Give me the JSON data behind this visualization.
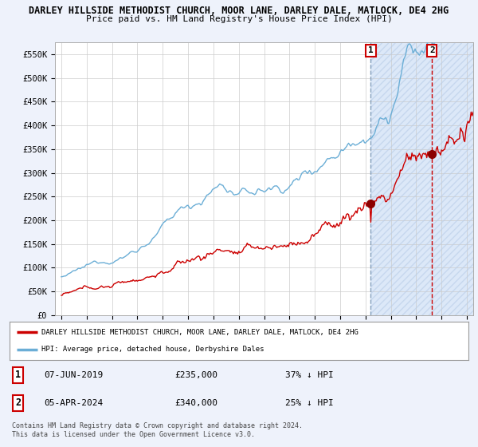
{
  "title": "DARLEY HILLSIDE METHODIST CHURCH, MOOR LANE, DARLEY DALE, MATLOCK, DE4 2HG",
  "subtitle": "Price paid vs. HM Land Registry's House Price Index (HPI)",
  "ylim": [
    0,
    575000
  ],
  "yticks": [
    0,
    50000,
    100000,
    150000,
    200000,
    250000,
    300000,
    350000,
    400000,
    450000,
    500000,
    550000
  ],
  "ytick_labels": [
    "£0",
    "£50K",
    "£100K",
    "£150K",
    "£200K",
    "£250K",
    "£300K",
    "£350K",
    "£400K",
    "£450K",
    "£500K",
    "£550K"
  ],
  "hpi_color": "#6baed6",
  "price_color": "#cc0000",
  "sale1_x": 2019.42,
  "sale2_x": 2024.25,
  "sale1_price": 235000,
  "sale2_price": 340000,
  "sale1_date": "07-JUN-2019",
  "sale2_date": "05-APR-2024",
  "sale1_pct": "37%",
  "sale2_pct": "25%",
  "legend_label1": "DARLEY HILLSIDE METHODIST CHURCH, MOOR LANE, DARLEY DALE, MATLOCK, DE4 2HG",
  "legend_label2": "HPI: Average price, detached house, Derbyshire Dales",
  "footnote": "Contains HM Land Registry data © Crown copyright and database right 2024.\nThis data is licensed under the Open Government Licence v3.0.",
  "background_color": "#eef2fb",
  "plot_bg": "#ffffff",
  "shade_color": "#dce8f8",
  "xmin": 1994.5,
  "xmax": 2027.5
}
